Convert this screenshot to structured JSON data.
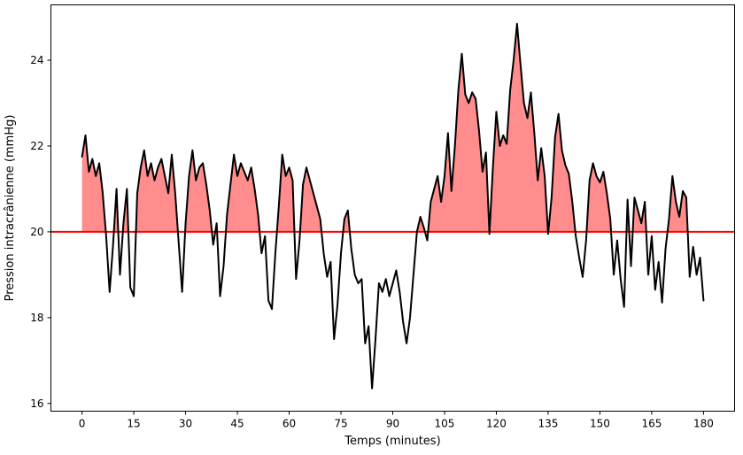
{
  "figure": {
    "background": "#ffffff"
  },
  "chart_data": {
    "type": "line",
    "title": "",
    "xlabel": "Temps (minutes)",
    "ylabel": "Pression intracrânienne (mmHg)",
    "xlim": [
      -9,
      189
    ],
    "ylim": [
      15.82,
      25.29
    ],
    "xticks": [
      0,
      15,
      30,
      45,
      60,
      75,
      90,
      105,
      120,
      135,
      150,
      165,
      180
    ],
    "yticks": [
      16,
      18,
      20,
      22,
      24
    ],
    "grid": false,
    "legend_position": "none",
    "threshold": {
      "value": 20,
      "color": "#FF0000",
      "line_width": 2
    },
    "fill_above_threshold": {
      "color": "#FF8D8D"
    },
    "series": [
      {
        "name": "pression_intracranienne",
        "color": "#000000",
        "line_width": 2,
        "x_start": 0,
        "x_step": 1,
        "y": [
          21.75,
          22.25,
          21.4,
          21.7,
          21.3,
          21.6,
          20.9,
          19.9,
          18.6,
          19.7,
          21.0,
          19.0,
          20.2,
          21.0,
          18.7,
          18.5,
          20.9,
          21.5,
          21.9,
          21.3,
          21.6,
          21.2,
          21.5,
          21.7,
          21.3,
          20.9,
          21.8,
          20.9,
          19.75,
          18.6,
          20.2,
          21.3,
          21.9,
          21.2,
          21.5,
          21.6,
          21.1,
          20.5,
          19.7,
          20.2,
          18.5,
          19.2,
          20.4,
          21.1,
          21.8,
          21.3,
          21.6,
          21.4,
          21.2,
          21.5,
          21.0,
          20.4,
          19.5,
          19.9,
          18.4,
          18.2,
          19.5,
          20.6,
          21.8,
          21.3,
          21.5,
          21.2,
          18.9,
          19.8,
          21.1,
          21.5,
          21.2,
          20.9,
          20.6,
          20.3,
          19.5,
          18.95,
          19.3,
          17.5,
          18.3,
          19.5,
          20.3,
          20.5,
          19.6,
          19.0,
          18.8,
          18.9,
          17.4,
          17.8,
          16.35,
          17.5,
          18.8,
          18.6,
          18.9,
          18.5,
          18.8,
          19.1,
          18.6,
          17.9,
          17.4,
          18.0,
          19.0,
          20.0,
          20.35,
          20.1,
          19.8,
          20.7,
          21.0,
          21.3,
          20.7,
          21.3,
          22.3,
          20.95,
          22.0,
          23.3,
          24.15,
          23.2,
          23.0,
          23.25,
          23.1,
          22.35,
          21.4,
          21.85,
          19.95,
          21.5,
          22.8,
          22.0,
          22.25,
          22.05,
          23.3,
          24.0,
          24.85,
          23.9,
          23.0,
          22.65,
          23.25,
          22.3,
          21.2,
          21.95,
          21.3,
          19.95,
          20.8,
          22.2,
          22.75,
          21.9,
          21.55,
          21.35,
          20.7,
          19.9,
          19.4,
          18.95,
          19.8,
          21.2,
          21.6,
          21.3,
          21.15,
          21.4,
          20.9,
          20.3,
          19.0,
          19.8,
          18.9,
          18.25,
          20.75,
          19.2,
          20.8,
          20.5,
          20.2,
          20.7,
          19.0,
          19.9,
          18.65,
          19.3,
          18.35,
          19.6,
          20.3,
          21.3,
          20.7,
          20.35,
          20.95,
          20.8,
          18.95,
          19.65,
          19.0,
          19.4,
          18.4
        ]
      }
    ]
  }
}
